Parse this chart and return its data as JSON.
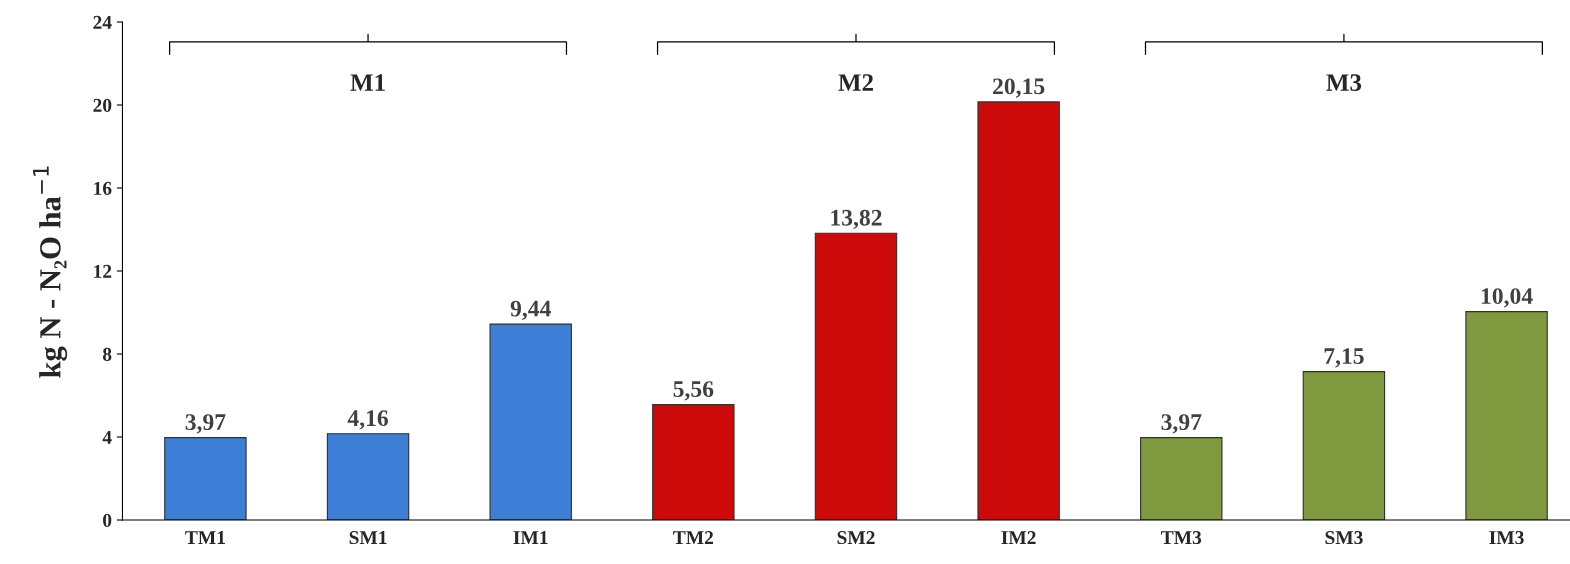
{
  "chart_data": {
    "type": "bar",
    "ylabel": "kg N - N₂O ha$^{−1}$",
    "categories": [
      "TM1",
      "SM1",
      "IM1",
      "TM2",
      "SM2",
      "IM2",
      "TM3",
      "SM3",
      "IM3"
    ],
    "values": [
      3.97,
      4.16,
      9.44,
      5.56,
      13.82,
      20.15,
      3.97,
      7.15,
      10.04
    ],
    "colors": [
      "#3d7fd6",
      "#3d7fd6",
      "#3d7fd6",
      "#cc0a0a",
      "#cc0a0a",
      "#cc0a0a",
      "#7f9a3e",
      "#7f9a3e",
      "#7f9a3e"
    ],
    "value_labels": [
      "3,97",
      "4,16",
      "9,44",
      "5,56",
      "13,82",
      "20,15",
      "3,97",
      "7,15",
      "10,04"
    ],
    "ylim": [
      0,
      24
    ],
    "yticks": [
      0,
      4,
      8,
      12,
      16,
      20,
      24
    ],
    "annotations": [
      "M1",
      "M2",
      "M3"
    ],
    "grid": false,
    "legend": false
  }
}
